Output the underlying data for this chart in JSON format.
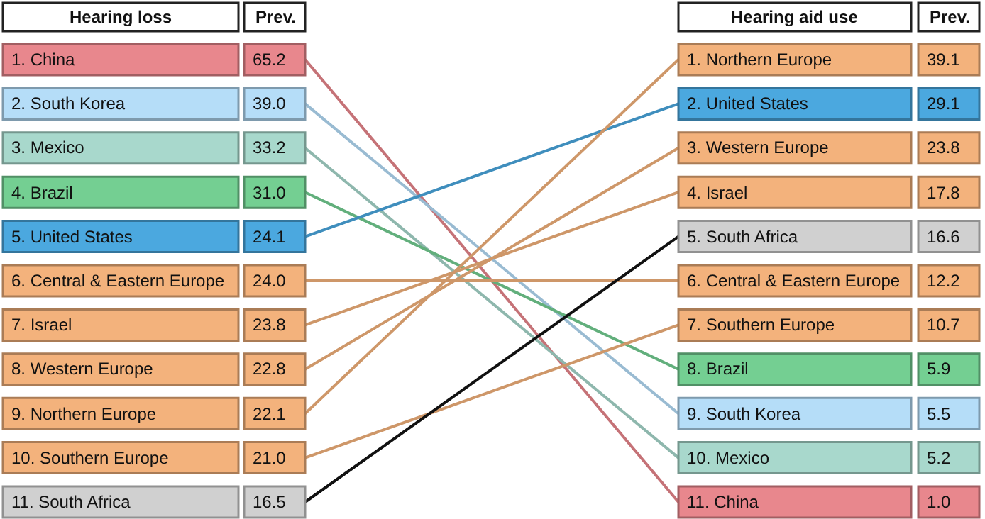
{
  "chart_data": [
    {
      "type": "other",
      "title": "Hearing loss",
      "annotations": [
        "Prev."
      ],
      "value_labels": [
        "65.2",
        "39.0",
        "33.2",
        "31.0",
        "24.1",
        "24.0",
        "23.8",
        "22.8",
        "22.1",
        "21.0",
        "16.5"
      ],
      "categories": [
        "1. China",
        "2. South Korea",
        "3. Mexico",
        "4. Brazil",
        "5. United States",
        "6. Central & Eastern Europe",
        "7. Israel",
        "8. Western Europe",
        "9. Northern Europe",
        "10. Southern Europe",
        "11. South Africa"
      ],
      "values": [
        65.2,
        39.0,
        33.2,
        31.0,
        24.1,
        24.0,
        23.8,
        22.8,
        22.1,
        21.0,
        16.5
      ],
      "colors": [
        "#e8878d",
        "#b5ddf8",
        "#a8d8cc",
        "#74cf92",
        "#4ba8df",
        "#f3b27c",
        "#f3b27c",
        "#f3b27c",
        "#f3b27c",
        "#f3b27c",
        "#d0d0d0"
      ]
    },
    {
      "type": "other",
      "title": "Hearing aid use",
      "annotations": [
        "Prev."
      ],
      "value_labels": [
        "39.1",
        "29.1",
        "23.8",
        "17.8",
        "16.6",
        "12.2",
        "10.7",
        "5.9",
        "5.5",
        "5.2",
        "1.0"
      ],
      "categories": [
        "1. Northern Europe",
        "2. United States",
        "3. Western Europe",
        "4. Israel",
        "5. South Africa",
        "6. Central & Eastern Europe",
        "7. Southern Europe",
        "8. Brazil",
        "9. South Korea",
        "10. Mexico",
        "11. China"
      ],
      "values": [
        39.1,
        29.1,
        23.8,
        17.8,
        16.6,
        12.2,
        10.7,
        5.9,
        5.5,
        5.2,
        1.0
      ],
      "colors": [
        "#f3b27c",
        "#4ba8df",
        "#f3b27c",
        "#f3b27c",
        "#d0d0d0",
        "#f3b27c",
        "#f3b27c",
        "#74cf92",
        "#b5ddf8",
        "#a8d8cc",
        "#e8878d"
      ]
    }
  ]
}
